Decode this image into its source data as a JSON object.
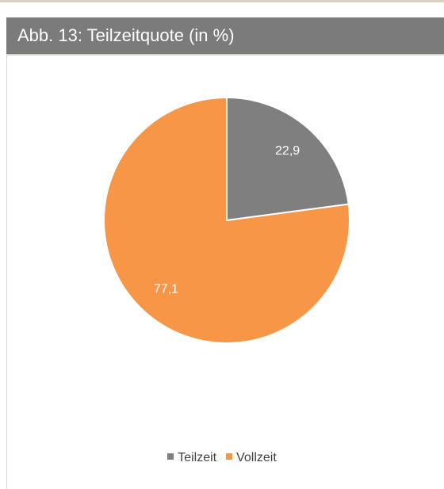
{
  "chart_data": {
    "type": "pie",
    "title": "Abb. 13: Teilzeitquote (in %)",
    "categories": [
      "Teilzeit",
      "Vollzeit"
    ],
    "values": [
      22.9,
      77.1
    ],
    "value_labels": [
      "22,9",
      "77,1"
    ],
    "colors": [
      "#7f7f7f",
      "#f79646"
    ],
    "legend": "bottom"
  }
}
